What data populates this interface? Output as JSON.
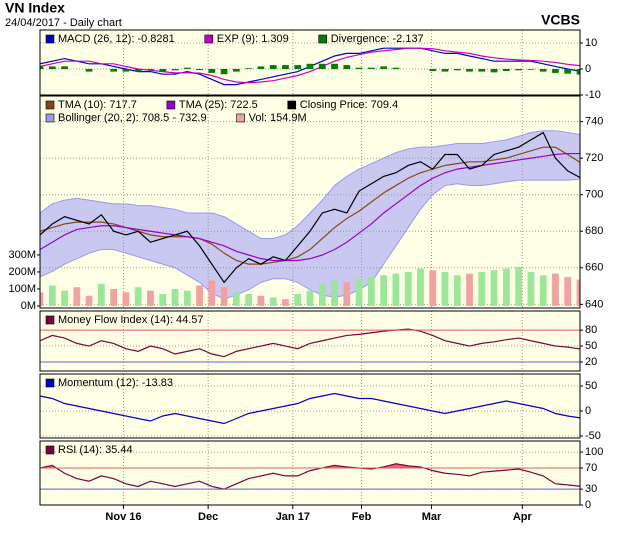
{
  "header": {
    "title": "VN Index",
    "subtitle": "24/04/2017 - Daily chart",
    "brand": "VCBS"
  },
  "chart_data": [
    {
      "type": "line",
      "xlim": [
        0,
        44
      ],
      "ylim": [
        -10,
        15
      ],
      "yticks": [
        10,
        0,
        -10
      ],
      "grid": true,
      "background": "#ffffe6",
      "series": [
        {
          "name": "MACD (26, 12): -0.8281",
          "color": "#0000cc",
          "values": [
            2,
            3,
            4,
            3,
            2,
            2,
            1,
            0,
            -1,
            -1,
            -2,
            -2,
            -1,
            -2,
            -4,
            -6,
            -6,
            -5,
            -4,
            -3,
            -2,
            -1,
            1,
            3,
            5,
            6,
            6,
            7,
            8,
            8,
            8,
            8,
            7,
            6,
            6,
            5,
            4,
            3,
            3,
            3,
            3,
            2,
            1,
            0,
            -0.8281
          ]
        },
        {
          "name": "EXP (9): 1.309",
          "color": "#cc00cc",
          "values": [
            1,
            2,
            3,
            3,
            3,
            2,
            2,
            1,
            0,
            -0.5,
            -1,
            -1.5,
            -1.5,
            -1.6,
            -2.5,
            -4,
            -5,
            -5.3,
            -5,
            -4.5,
            -3.5,
            -2.5,
            -1,
            1,
            3,
            4.5,
            5.5,
            6.5,
            7,
            7.5,
            8,
            8,
            7.8,
            7,
            6.5,
            6,
            5,
            4.3,
            3.8,
            3.5,
            3.3,
            3,
            2.5,
            1.8,
            1.309
          ]
        },
        {
          "name": "Divergence: -2.137",
          "color": "#008000",
          "style": "bar",
          "values": [
            1,
            1,
            1,
            0,
            -1,
            0,
            -1,
            -1,
            -1,
            -0.5,
            -1,
            -0.5,
            0.5,
            -0.4,
            -1.5,
            -2,
            -1,
            0.3,
            1,
            1.5,
            1.5,
            1.5,
            2,
            2,
            2,
            1.5,
            0.5,
            0.5,
            1,
            0.5,
            0,
            0,
            -0.8,
            -1,
            -0.5,
            -1,
            -1,
            -1.3,
            -0.8,
            -0.5,
            -0.3,
            -1,
            -1.5,
            -1.8,
            -2.137
          ]
        }
      ]
    },
    {
      "type": "line",
      "xlim": [
        0,
        44
      ],
      "ylim": [
        638,
        754
      ],
      "yticks": [
        740,
        720,
        700,
        680,
        660,
        640
      ],
      "grid": true,
      "background": "#ffffe6",
      "y2lim": [
        -12,
        1235
      ],
      "y2ticks": [
        {
          "value": 300,
          "label": "300M"
        },
        {
          "value": 200,
          "label": "200M"
        },
        {
          "value": 100,
          "label": "100M"
        },
        {
          "value": 0,
          "label": "0M"
        }
      ],
      "bollinger": {
        "name": "Bollinger (20, 2): 708.5 - 732.9",
        "color": "#9999ee",
        "fill": "#c8c8f0",
        "upper": [
          690,
          695,
          697,
          698,
          697,
          696,
          695,
          695,
          694,
          694,
          693,
          692,
          690,
          690,
          690,
          688,
          684,
          680,
          676,
          676,
          678,
          683,
          690,
          697,
          705,
          710,
          714,
          717,
          720,
          723,
          725,
          726,
          726,
          727,
          728,
          728,
          728,
          729,
          730,
          732,
          734,
          735,
          735,
          734,
          732.9
        ],
        "lower": [
          655,
          658,
          662,
          665,
          668,
          670,
          670,
          668,
          666,
          664,
          662,
          660,
          656,
          652,
          646,
          643,
          645,
          648,
          652,
          654,
          654,
          652,
          648,
          645,
          644,
          645,
          648,
          652,
          662,
          672,
          682,
          692,
          700,
          705,
          706,
          705,
          705,
          706,
          707,
          708,
          708,
          708,
          708,
          708,
          708.5
        ]
      },
      "series": [
        {
          "name": "Vol: 154.9M",
          "color": "#f4a0a0",
          "up_color": "#98e898",
          "style": "bar",
          "axis": "y2",
          "values": [
            80,
            120,
            90,
            110,
            60,
            130,
            100,
            80,
            110,
            90,
            70,
            100,
            90,
            120,
            150,
            110,
            80,
            70,
            60,
            50,
            40,
            70,
            90,
            130,
            150,
            140,
            160,
            170,
            180,
            190,
            200,
            220,
            210,
            200,
            180,
            190,
            200,
            210,
            220,
            230,
            200,
            180,
            190,
            170,
            154.9
          ]
        },
        {
          "name": "TMA (10): 717.7",
          "color": "#8b4513",
          "values": [
            680,
            682,
            684,
            685,
            685,
            685,
            684,
            682,
            680,
            678,
            677,
            677,
            677,
            676,
            673,
            668,
            664,
            662,
            662,
            663,
            664,
            666,
            670,
            676,
            682,
            687,
            691,
            696,
            701,
            705,
            709,
            712,
            714,
            716,
            717,
            718,
            718,
            719,
            720,
            722,
            724,
            726,
            726,
            722,
            717.7
          ]
        },
        {
          "name": "TMA (25): 722.5",
          "color": "#9900cc",
          "values": [
            670,
            674,
            678,
            681,
            682,
            683,
            683,
            682,
            681,
            680,
            679,
            678,
            677,
            676,
            674,
            672,
            669,
            667,
            665,
            664,
            664,
            664,
            665,
            667,
            670,
            674,
            679,
            684,
            690,
            695,
            700,
            705,
            709,
            712,
            714,
            715,
            716,
            717,
            718,
            719,
            720,
            721,
            722,
            722.5,
            722.5
          ]
        },
        {
          "name": "Closing Price: 709.4",
          "color": "#000000",
          "values": [
            678,
            684,
            688,
            686,
            684,
            689,
            680,
            678,
            680,
            674,
            676,
            678,
            680,
            672,
            662,
            652,
            660,
            665,
            662,
            666,
            664,
            672,
            680,
            690,
            692,
            690,
            702,
            706,
            710,
            712,
            716,
            718,
            714,
            722,
            722,
            714,
            716,
            722,
            724,
            726,
            730,
            734,
            720,
            713,
            709.4
          ]
        }
      ]
    },
    {
      "type": "line",
      "xlim": [
        0,
        44
      ],
      "ylim": [
        3,
        116
      ],
      "yticks": [
        80,
        50,
        20
      ],
      "grid": true,
      "background": "#ffffe6",
      "reference_lines": [
        {
          "value": 80,
          "color": "#e06060"
        },
        {
          "value": 20,
          "color": "#6060e0"
        }
      ],
      "fill_above": {
        "value": 80,
        "color": "#f06070"
      },
      "series": [
        {
          "name": "Money Flow Index (14): 44.57",
          "color": "#800040",
          "values": [
            60,
            70,
            65,
            55,
            50,
            60,
            55,
            45,
            40,
            50,
            45,
            35,
            40,
            45,
            35,
            30,
            40,
            45,
            50,
            55,
            50,
            45,
            55,
            60,
            65,
            70,
            72,
            75,
            78,
            80,
            82,
            78,
            70,
            60,
            55,
            50,
            55,
            58,
            62,
            65,
            60,
            55,
            50,
            48,
            44.57
          ]
        }
      ]
    },
    {
      "type": "line",
      "xlim": [
        0,
        44
      ],
      "ylim": [
        -54,
        74
      ],
      "yticks": [
        50,
        0,
        -50
      ],
      "grid": true,
      "background": "#ffffe6",
      "series": [
        {
          "name": "Momentum (12): -13.83",
          "color": "#0000cc",
          "values": [
            30,
            25,
            15,
            10,
            5,
            0,
            -5,
            -10,
            -15,
            -20,
            -10,
            -5,
            -10,
            -15,
            -20,
            -25,
            -15,
            -5,
            0,
            5,
            10,
            15,
            25,
            30,
            35,
            30,
            25,
            25,
            20,
            15,
            10,
            5,
            0,
            -5,
            0,
            5,
            10,
            15,
            20,
            15,
            10,
            5,
            -5,
            -10,
            -13.83
          ]
        }
      ]
    },
    {
      "type": "line",
      "xlim": [
        0,
        44
      ],
      "ylim": [
        0,
        121
      ],
      "yticks": [
        100,
        70,
        30,
        0
      ],
      "grid": true,
      "background": "#ffffe6",
      "reference_lines": [
        {
          "value": 70,
          "color": "#e06060"
        },
        {
          "value": 30,
          "color": "#6060e0"
        }
      ],
      "fill_above": {
        "value": 70,
        "color": "#f06070"
      },
      "xticks": [
        {
          "value": 6.8,
          "label": "Nov 16"
        },
        {
          "value": 13.7,
          "label": "Dec"
        },
        {
          "value": 20.6,
          "label": "Jan 17"
        },
        {
          "value": 26.2,
          "label": "Feb"
        },
        {
          "value": 31.9,
          "label": "Mar"
        },
        {
          "value": 39.3,
          "label": "Apr"
        }
      ],
      "series": [
        {
          "name": "RSI (14): 35.44",
          "color": "#800040",
          "values": [
            70,
            75,
            60,
            50,
            45,
            55,
            50,
            40,
            35,
            45,
            40,
            35,
            40,
            45,
            35,
            30,
            40,
            50,
            55,
            60,
            55,
            55,
            65,
            70,
            75,
            72,
            70,
            68,
            72,
            78,
            74,
            72,
            65,
            60,
            58,
            55,
            62,
            64,
            66,
            68,
            62,
            55,
            40,
            38,
            35.44
          ]
        }
      ]
    }
  ]
}
